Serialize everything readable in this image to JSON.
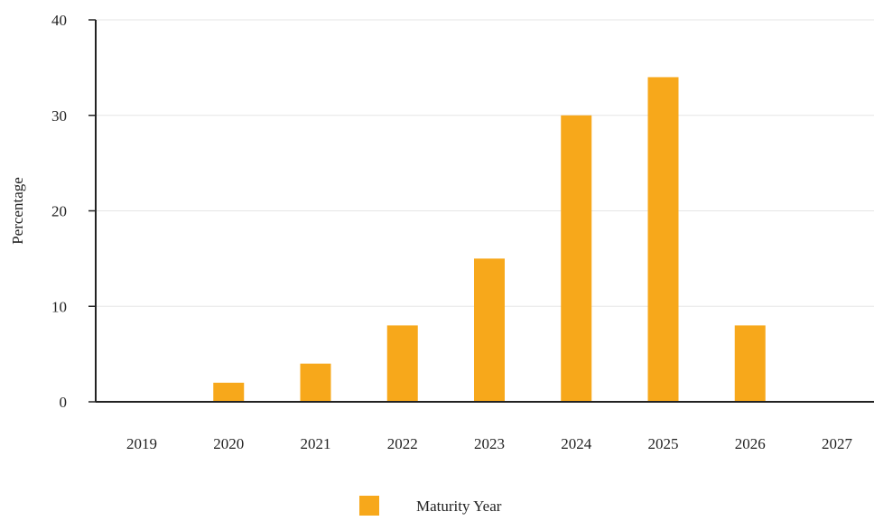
{
  "chart_data": {
    "type": "bar",
    "categories": [
      "2019",
      "2020",
      "2021",
      "2022",
      "2023",
      "2024",
      "2025",
      "2026",
      "2027"
    ],
    "series": [
      {
        "name": "Maturity Year",
        "values": [
          0,
          2,
          4,
          8,
          15,
          30,
          34,
          8,
          0
        ],
        "color": "#F7A81B"
      }
    ],
    "xlabel": "",
    "ylabel": "Percentage",
    "ylim": [
      0,
      40
    ],
    "yticks": [
      0,
      10,
      20,
      30,
      40
    ],
    "grid": true,
    "legend_position": "bottom-center"
  }
}
